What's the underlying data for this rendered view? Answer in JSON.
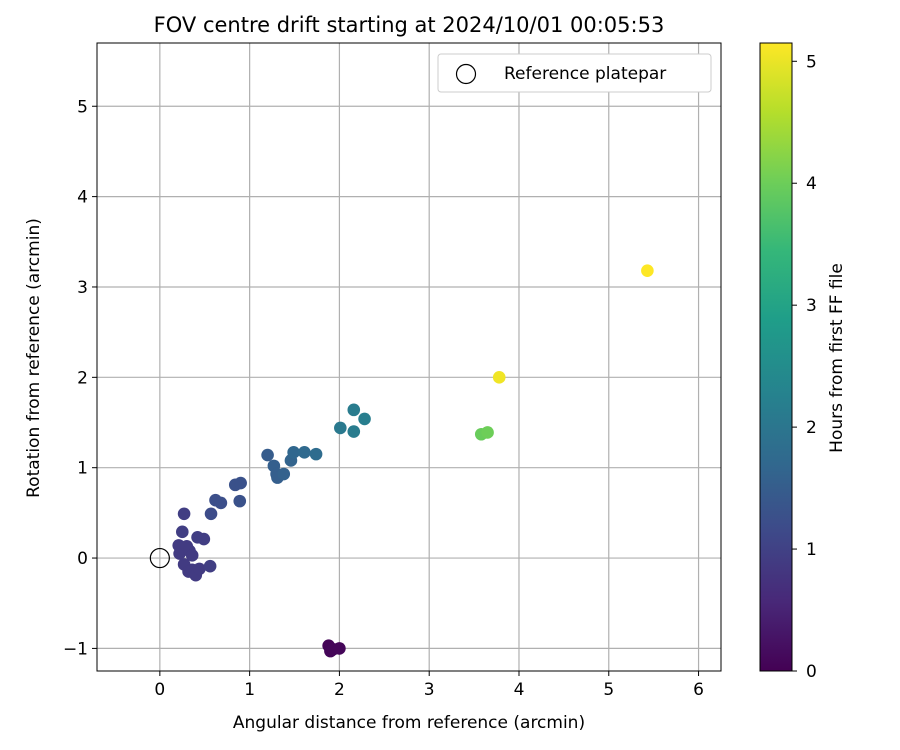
{
  "chart_data": {
    "type": "scatter",
    "title": "FOV centre drift starting at 2024/10/01 00:05:53",
    "xlabel": "Angular distance from reference (arcmin)",
    "ylabel": "Rotation from reference (arcmin)",
    "xlim": [
      -0.7,
      6.25
    ],
    "ylim": [
      -1.25,
      5.7
    ],
    "xticks": [
      "0",
      "1",
      "2",
      "3",
      "4",
      "5",
      "6"
    ],
    "yticks": [
      "−1",
      "0",
      "1",
      "2",
      "3",
      "4",
      "5"
    ],
    "grid": true,
    "legend": {
      "position": "top-right",
      "label": "Reference platepar"
    },
    "reference_point": {
      "x": 0,
      "y": 0
    },
    "colorbar": {
      "label": "Hours from first FF file",
      "range": [
        0,
        5.15
      ],
      "ticks": [
        "0",
        "1",
        "2",
        "3",
        "4",
        "5"
      ],
      "colormap": "viridis"
    },
    "points": [
      {
        "x": 1.88,
        "y": -0.97,
        "h": 0.05
      },
      {
        "x": 1.9,
        "y": -1.03,
        "h": 0.06
      },
      {
        "x": 1.93,
        "y": -1.01,
        "h": 0.07
      },
      {
        "x": 2.0,
        "y": -1.0,
        "h": 0.08
      },
      {
        "x": 0.27,
        "y": 0.49,
        "h": 0.95
      },
      {
        "x": 0.25,
        "y": 0.29,
        "h": 0.95
      },
      {
        "x": 0.21,
        "y": 0.14,
        "h": 0.9
      },
      {
        "x": 0.22,
        "y": 0.05,
        "h": 0.9
      },
      {
        "x": 0.3,
        "y": 0.13,
        "h": 0.9
      },
      {
        "x": 0.33,
        "y": 0.08,
        "h": 0.9
      },
      {
        "x": 0.27,
        "y": -0.07,
        "h": 0.9
      },
      {
        "x": 0.32,
        "y": -0.15,
        "h": 0.9
      },
      {
        "x": 0.36,
        "y": -0.13,
        "h": 0.9
      },
      {
        "x": 0.4,
        "y": -0.19,
        "h": 0.9
      },
      {
        "x": 0.44,
        "y": -0.12,
        "h": 0.9
      },
      {
        "x": 0.36,
        "y": 0.03,
        "h": 0.9
      },
      {
        "x": 0.42,
        "y": 0.23,
        "h": 0.95
      },
      {
        "x": 0.49,
        "y": 0.21,
        "h": 0.95
      },
      {
        "x": 0.56,
        "y": -0.09,
        "h": 0.95
      },
      {
        "x": 0.57,
        "y": 0.49,
        "h": 1.2
      },
      {
        "x": 0.62,
        "y": 0.64,
        "h": 1.25
      },
      {
        "x": 0.68,
        "y": 0.61,
        "h": 1.25
      },
      {
        "x": 0.84,
        "y": 0.81,
        "h": 1.3
      },
      {
        "x": 0.9,
        "y": 0.83,
        "h": 1.3
      },
      {
        "x": 0.89,
        "y": 0.63,
        "h": 1.3
      },
      {
        "x": 1.2,
        "y": 1.14,
        "h": 1.5
      },
      {
        "x": 1.27,
        "y": 1.02,
        "h": 1.55
      },
      {
        "x": 1.3,
        "y": 0.93,
        "h": 1.55
      },
      {
        "x": 1.31,
        "y": 0.89,
        "h": 1.55
      },
      {
        "x": 1.38,
        "y": 0.93,
        "h": 1.6
      },
      {
        "x": 1.46,
        "y": 1.08,
        "h": 1.65
      },
      {
        "x": 1.49,
        "y": 1.17,
        "h": 1.7
      },
      {
        "x": 1.61,
        "y": 1.17,
        "h": 1.75
      },
      {
        "x": 1.74,
        "y": 1.15,
        "h": 1.8
      },
      {
        "x": 2.01,
        "y": 1.44,
        "h": 2.1
      },
      {
        "x": 2.16,
        "y": 1.64,
        "h": 2.15
      },
      {
        "x": 2.16,
        "y": 1.4,
        "h": 2.15
      },
      {
        "x": 2.28,
        "y": 1.54,
        "h": 2.2
      },
      {
        "x": 3.58,
        "y": 1.37,
        "h": 3.95
      },
      {
        "x": 3.65,
        "y": 1.39,
        "h": 4.0
      },
      {
        "x": 3.78,
        "y": 2.0,
        "h": 5.05
      },
      {
        "x": 5.43,
        "y": 3.18,
        "h": 5.15
      }
    ]
  }
}
